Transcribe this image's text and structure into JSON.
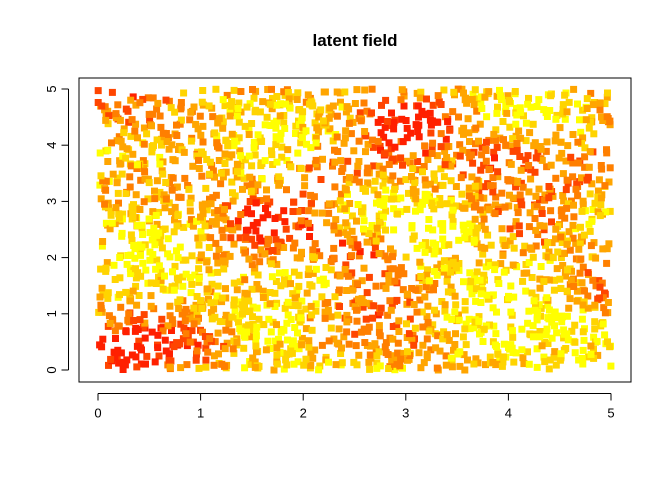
{
  "chart_data": {
    "type": "scatter",
    "title": "latent field",
    "xlabel": "",
    "ylabel": "",
    "xlim": [
      0,
      5
    ],
    "ylim": [
      0,
      5
    ],
    "x_ticks": [
      0,
      1,
      2,
      3,
      4,
      5
    ],
    "y_ticks": [
      0,
      1,
      2,
      3,
      4,
      5
    ],
    "grid": false,
    "legend": "none",
    "marker": "square",
    "point_count_approx": 2500,
    "point_distribution": "uniform random over [0,5] x [0,5]",
    "color_scale": [
      "#FFFF00",
      "#FFD400",
      "#FFA500",
      "#FF7F00",
      "#FF4500",
      "#FF2000"
    ],
    "hotspots": [
      {
        "x": 2.5,
        "y": 2.1,
        "level": 0.95
      },
      {
        "x": 3.1,
        "y": 4.4,
        "level": 0.9
      },
      {
        "x": 4.0,
        "y": 3.9,
        "level": 0.85
      },
      {
        "x": 1.7,
        "y": 2.8,
        "level": 0.8
      },
      {
        "x": 4.9,
        "y": 3.5,
        "level": 0.8
      },
      {
        "x": 0.4,
        "y": 4.9,
        "level": 0.75
      },
      {
        "x": 1.1,
        "y": 0.5,
        "level": 0.75
      },
      {
        "x": 0.3,
        "y": 0.3,
        "level": 0.7
      },
      {
        "x": 2.2,
        "y": 3.6,
        "level": 0.65
      }
    ],
    "coldspots": [
      {
        "x": 2.0,
        "y": 1.8
      },
      {
        "x": 3.5,
        "y": 2.5
      },
      {
        "x": 0.6,
        "y": 3.8
      },
      {
        "x": 4.6,
        "y": 0.9
      },
      {
        "x": 3.9,
        "y": 0.3
      }
    ]
  }
}
